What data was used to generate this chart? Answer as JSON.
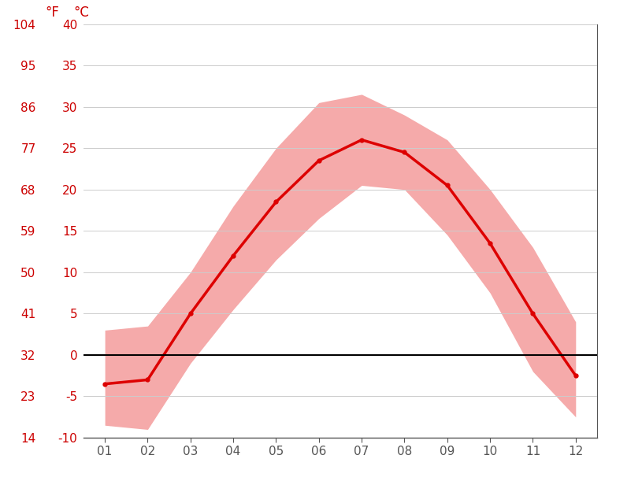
{
  "months": [
    1,
    2,
    3,
    4,
    5,
    6,
    7,
    8,
    9,
    10,
    11,
    12
  ],
  "month_labels": [
    "01",
    "02",
    "03",
    "04",
    "05",
    "06",
    "07",
    "08",
    "09",
    "10",
    "11",
    "12"
  ],
  "mean_temp": [
    -3.5,
    -3.0,
    5.0,
    12.0,
    18.5,
    23.5,
    26.0,
    24.5,
    20.5,
    13.5,
    5.0,
    -2.5
  ],
  "max_temp": [
    3.0,
    3.5,
    10.0,
    18.0,
    25.0,
    30.5,
    31.5,
    29.0,
    26.0,
    20.0,
    13.0,
    4.0
  ],
  "min_temp": [
    -8.5,
    -9.0,
    -1.0,
    5.5,
    11.5,
    16.5,
    20.5,
    20.0,
    14.5,
    7.5,
    -2.0,
    -7.5
  ],
  "ylim_c": [
    -10,
    40
  ],
  "yticks_c": [
    -10,
    -5,
    0,
    5,
    10,
    15,
    20,
    25,
    30,
    35,
    40
  ],
  "yticks_f": [
    14,
    23,
    32,
    41,
    50,
    59,
    68,
    77,
    86,
    95,
    104
  ],
  "line_color": "#dd0000",
  "band_color": "#f5aaaa",
  "zero_line_color": "#000000",
  "grid_color": "#cccccc",
  "tick_color": "#cc0000",
  "axis_color": "#555555",
  "bg_color": "#ffffff"
}
